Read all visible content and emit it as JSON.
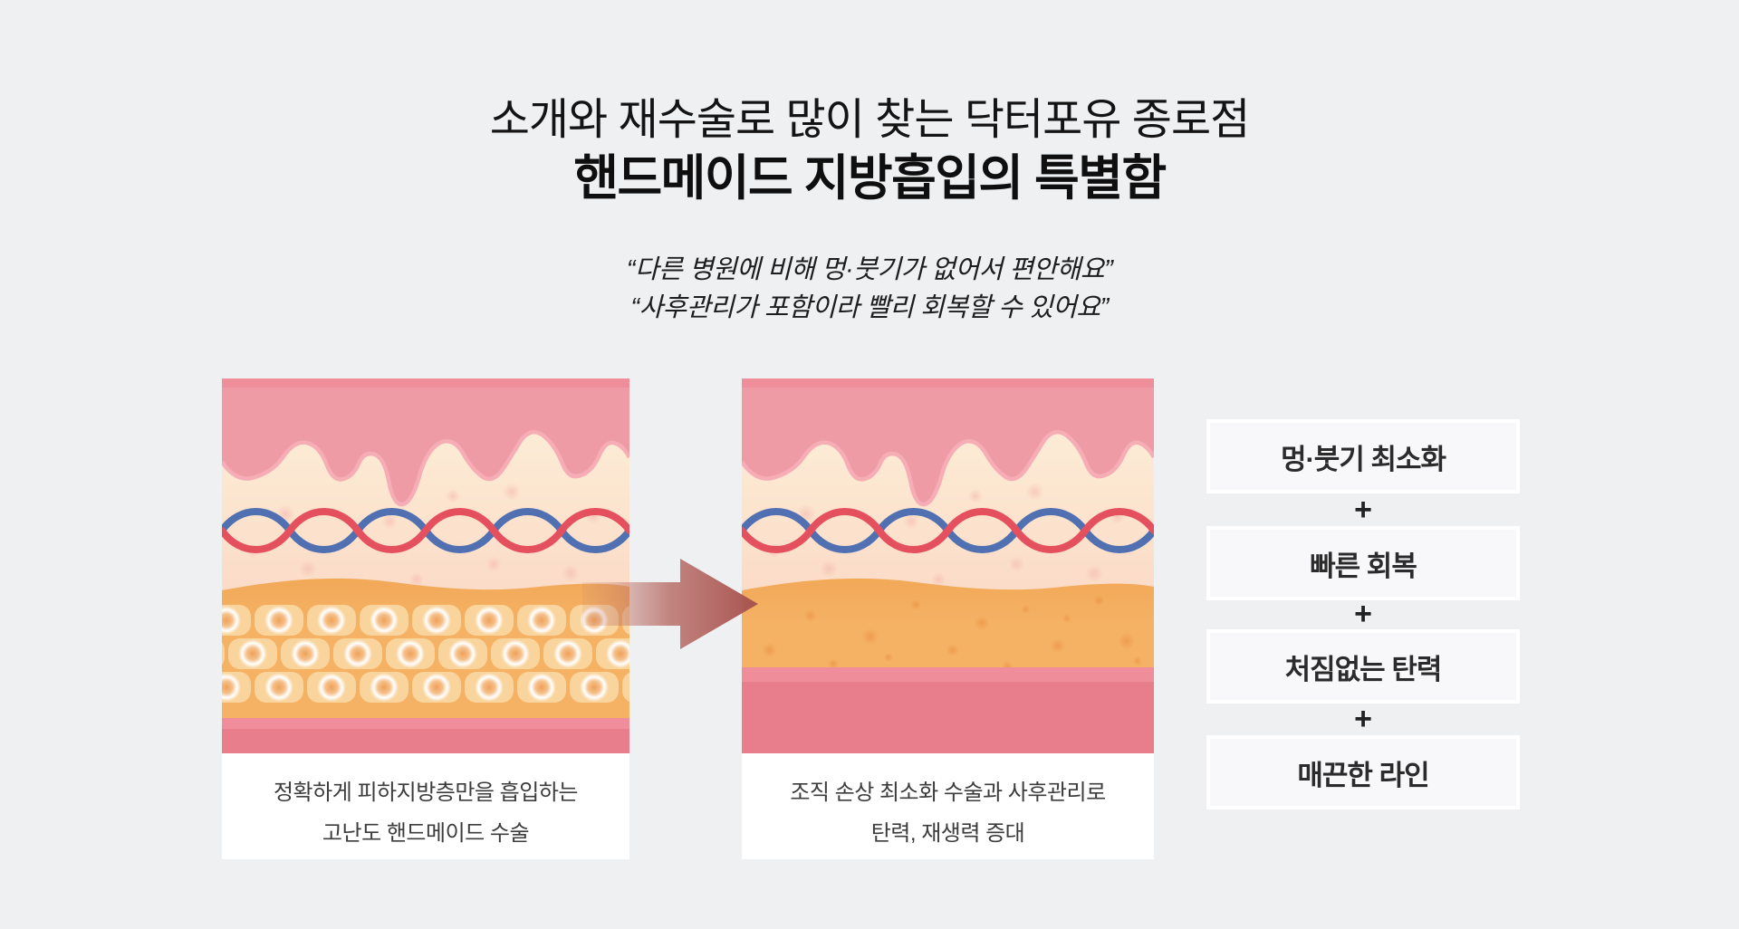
{
  "page": {
    "background": "#eff0f2"
  },
  "header": {
    "subtitle": "소개와 재수술로 많이 찾는 닥터포유 종로점",
    "title": "핸드메이드 지방흡입의 특별함"
  },
  "quotes": [
    "“다른 병원에 비해 멍·붓기가 없어서 편안해요”",
    "“사후관리가 포함이라 빨리 회복할 수 있어요”"
  ],
  "panels": [
    {
      "variant": "before",
      "caption_line1": "정확하게 피하지방층만을 흡입하는",
      "caption_line2": "고난도 핸드메이드 수술"
    },
    {
      "variant": "after",
      "caption_line1": "조직 손상 최소화 수술과 사후관리로",
      "caption_line2": "탄력, 재생력 증대"
    }
  ],
  "benefits": {
    "separator": "+",
    "items": [
      "멍·붓기 최소화",
      "빠른 회복",
      "처짐없는 탄력",
      "매끈한 라인"
    ],
    "box_background": "#f8f8fa",
    "box_border": "#ffffff",
    "text_color": "#2b2b2b"
  },
  "arrow": {
    "from": "#c27c72",
    "mid": "#b5655e",
    "to": "#a85350"
  },
  "illustration": {
    "colors": {
      "epidermis": "#ef9ba6",
      "epidermis_shadowtop": "#ee8e9b",
      "epidermis_edge": "#f6adb5",
      "dermis_top": "#fdf2da",
      "dermis_mid": "#fbdcc8",
      "dermis_bottom": "#f9cfc2",
      "dermis_dot": "#f4b4aa",
      "vein": "#5170b2",
      "artery": "#e5505f",
      "fat": "#f5b164",
      "fat_dark": "#f2a958",
      "fat_cell": "#f9d49c",
      "fat_cell_core": "#efa158",
      "fat_cell_ring": "#ffffff",
      "fat_dot": "#ec9646",
      "muscle_light": "#f08d9a",
      "muscle": "#e87d8c"
    }
  }
}
